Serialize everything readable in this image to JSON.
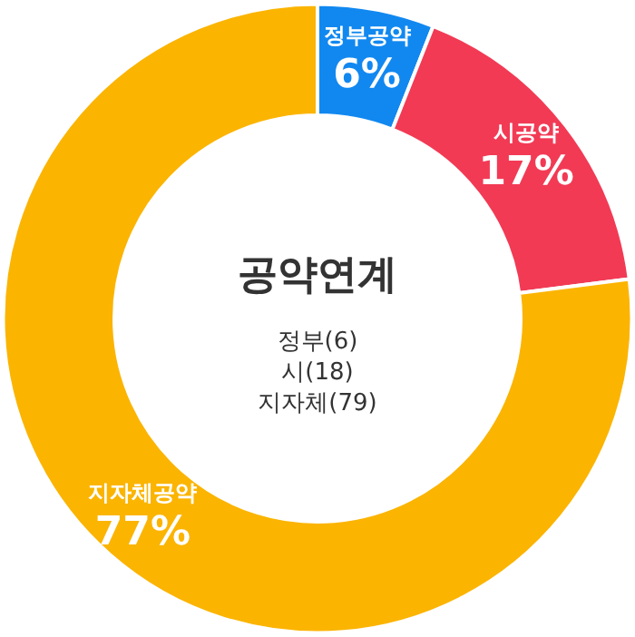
{
  "chart_data": {
    "type": "donut",
    "title": "공약연계",
    "categories": [
      "정부공약",
      "시공약",
      "지자체공약"
    ],
    "values": [
      6,
      17,
      77
    ],
    "colors": [
      "#1188f0",
      "#f23a55",
      "#fbb400"
    ],
    "value_labels": [
      "6%",
      "17%",
      "77%"
    ],
    "annotations": [
      "정부(6)",
      "시(18)",
      "지자체(79)"
    ]
  }
}
